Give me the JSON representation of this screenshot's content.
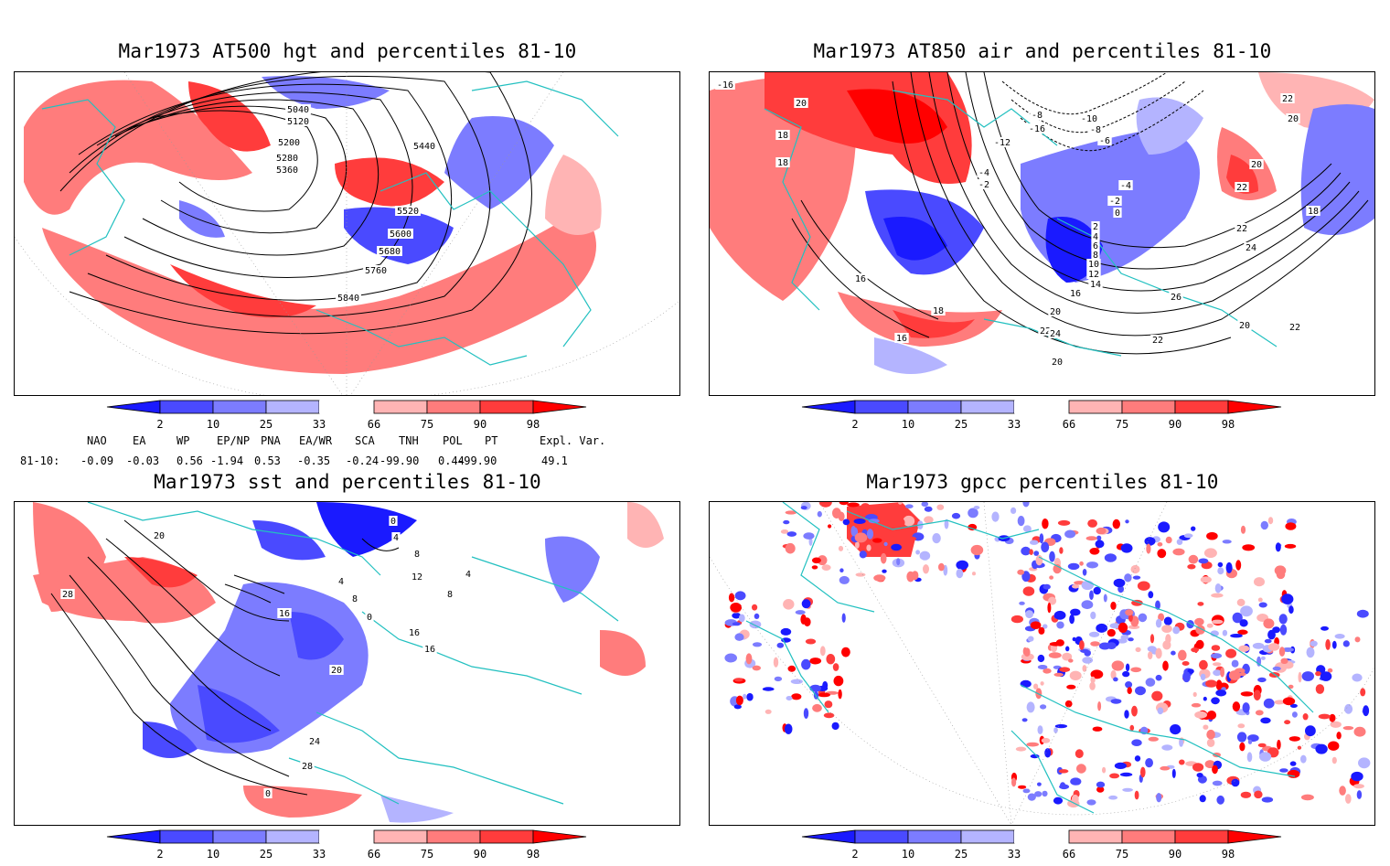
{
  "colors": {
    "coast": "#22c0c0",
    "contour": "#000000",
    "frame": "#000000",
    "scale": [
      "#1a1aff",
      "#4a4aff",
      "#7c7cff",
      "#b4b4ff",
      "#ffffff",
      "#ffb4b4",
      "#ff7c7c",
      "#ff3c3c",
      "#ff0000"
    ]
  },
  "colorbar": {
    "ticks": [
      "2",
      "10",
      "25",
      "33",
      "66",
      "75",
      "90",
      "98"
    ]
  },
  "panels": [
    {
      "id": "hgt500",
      "title": "Mar1973 AT500 hgt and percentiles 81-10",
      "contour_labels": [
        "5040",
        "5120",
        "5200",
        "5280",
        "5360",
        "5440",
        "5520",
        "5600",
        "5680",
        "5760",
        "5840"
      ]
    },
    {
      "id": "air850",
      "title": "Mar1973 AT850 air and percentiles 81-10",
      "contour_labels": [
        "-16",
        "20",
        "18",
        "18",
        "-10",
        "-8",
        "-6",
        "-16",
        "-8",
        "-12",
        "22",
        "20",
        "-4",
        "-2",
        "-4",
        "-2",
        "0",
        "20",
        "22",
        "18",
        "2",
        "4",
        "6",
        "8",
        "10",
        "12",
        "14",
        "16",
        "24",
        "22",
        "26",
        "16",
        "18",
        "20",
        "22",
        "24",
        "22",
        "16",
        "20",
        "20",
        "22"
      ]
    },
    {
      "id": "sst",
      "title": "Mar1973 sst and percentiles 81-10",
      "contour_labels": [
        "20",
        "28",
        "0",
        "4",
        "8",
        "12",
        "16",
        "20",
        "24",
        "28",
        "0",
        "4",
        "8",
        "0",
        "4",
        "8",
        "16",
        "16"
      ]
    },
    {
      "id": "gpcc",
      "title": "Mar1973 gpcc percentiles 81-10",
      "contour_labels": []
    }
  ],
  "indices": {
    "header": [
      "NAO",
      "EA",
      "WP",
      "EP/NP",
      "PNA",
      "EA/WR",
      "SCA",
      "TNH",
      "POL",
      "PT",
      "Expl. Var."
    ],
    "row_label": "81-10:",
    "values": [
      "-0.09",
      "-0.03",
      "0.56",
      "-1.94",
      "0.53",
      "-0.35",
      "-0.24",
      "-99.90",
      "0.44",
      "-99.90",
      "49.1"
    ]
  }
}
